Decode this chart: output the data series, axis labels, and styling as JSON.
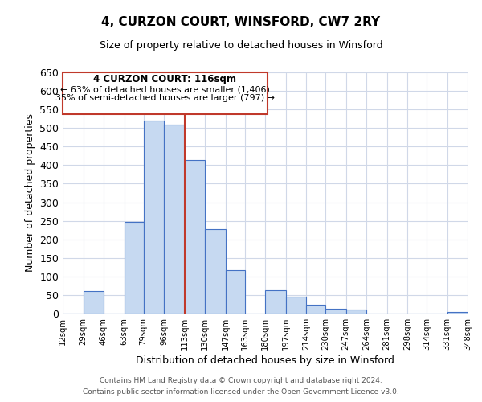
{
  "title": "4, CURZON COURT, WINSFORD, CW7 2RY",
  "subtitle": "Size of property relative to detached houses in Winsford",
  "xlabel": "Distribution of detached houses by size in Winsford",
  "ylabel": "Number of detached properties",
  "bar_edges": [
    12,
    29,
    46,
    63,
    79,
    96,
    113,
    130,
    147,
    163,
    180,
    197,
    214,
    230,
    247,
    264,
    281,
    298,
    314,
    331,
    348
  ],
  "bar_heights": [
    0,
    60,
    0,
    248,
    521,
    510,
    414,
    228,
    118,
    0,
    63,
    45,
    24,
    13,
    10,
    0,
    0,
    0,
    0,
    5
  ],
  "bar_color": "#c6d9f1",
  "bar_edge_color": "#4472c4",
  "tick_labels": [
    "12sqm",
    "29sqm",
    "46sqm",
    "63sqm",
    "79sqm",
    "96sqm",
    "113sqm",
    "130sqm",
    "147sqm",
    "163sqm",
    "180sqm",
    "197sqm",
    "214sqm",
    "230sqm",
    "247sqm",
    "264sqm",
    "281sqm",
    "298sqm",
    "314sqm",
    "331sqm",
    "348sqm"
  ],
  "ylim": [
    0,
    650
  ],
  "yticks": [
    0,
    50,
    100,
    150,
    200,
    250,
    300,
    350,
    400,
    450,
    500,
    550,
    600,
    650
  ],
  "vline_x": 113,
  "vline_color": "#c0392b",
  "annotation_title": "4 CURZON COURT: 116sqm",
  "annotation_line1": "← 63% of detached houses are smaller (1,406)",
  "annotation_line2": "35% of semi-detached houses are larger (797) →",
  "annotation_box_color": "#c0392b",
  "footer1": "Contains HM Land Registry data © Crown copyright and database right 2024.",
  "footer2": "Contains public sector information licensed under the Open Government Licence v3.0.",
  "bg_color": "#ffffff",
  "grid_color": "#d0d8e8"
}
